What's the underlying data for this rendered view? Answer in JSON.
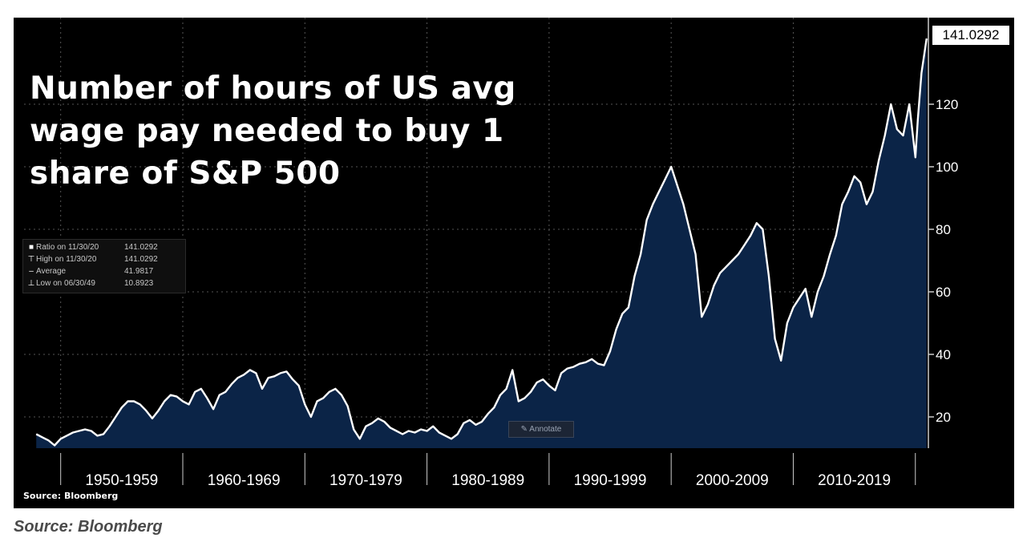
{
  "chart_data": {
    "type": "area",
    "title": "Number of hours of US avg wage pay needed to buy 1 share of S&P 500",
    "xlabel": "",
    "ylabel": "",
    "x_range": [
      1947.0,
      2021.0
    ],
    "ylim": [
      10,
      145
    ],
    "yticks": [
      20,
      40,
      60,
      80,
      100,
      120
    ],
    "decades": [
      {
        "label": "1950-1959",
        "start": 1950,
        "end": 1960
      },
      {
        "label": "1960-1969",
        "start": 1960,
        "end": 1970
      },
      {
        "label": "1970-1979",
        "start": 1970,
        "end": 1980
      },
      {
        "label": "1980-1989",
        "start": 1980,
        "end": 1990
      },
      {
        "label": "1990-1999",
        "start": 1990,
        "end": 2000
      },
      {
        "label": "2000-2009",
        "start": 2000,
        "end": 2010
      },
      {
        "label": "2010-2019",
        "start": 2010,
        "end": 2020
      }
    ],
    "grid": true,
    "legend_placement": "left-middle",
    "series": [
      {
        "name": "Ratio",
        "x": [
          1948.0,
          1948.5,
          1949.0,
          1949.5,
          1950.0,
          1950.5,
          1951.0,
          1951.5,
          1952.0,
          1952.5,
          1953.0,
          1953.5,
          1954.0,
          1954.5,
          1955.0,
          1955.5,
          1956.0,
          1956.5,
          1957.0,
          1957.5,
          1958.0,
          1958.5,
          1959.0,
          1959.5,
          1960.0,
          1960.5,
          1961.0,
          1961.5,
          1962.0,
          1962.5,
          1963.0,
          1963.5,
          1964.0,
          1964.5,
          1965.0,
          1965.5,
          1966.0,
          1966.5,
          1967.0,
          1967.5,
          1968.0,
          1968.5,
          1969.0,
          1969.5,
          1970.0,
          1970.5,
          1971.0,
          1971.5,
          1972.0,
          1972.5,
          1973.0,
          1973.5,
          1974.0,
          1974.5,
          1975.0,
          1975.5,
          1976.0,
          1976.5,
          1977.0,
          1977.5,
          1978.0,
          1978.5,
          1979.0,
          1979.5,
          1980.0,
          1980.5,
          1981.0,
          1981.5,
          1982.0,
          1982.5,
          1983.0,
          1983.5,
          1984.0,
          1984.5,
          1985.0,
          1985.5,
          1986.0,
          1986.5,
          1987.0,
          1987.5,
          1988.0,
          1988.5,
          1989.0,
          1989.5,
          1990.0,
          1990.5,
          1991.0,
          1991.5,
          1992.0,
          1992.5,
          1993.0,
          1993.5,
          1994.0,
          1994.5,
          1995.0,
          1995.5,
          1996.0,
          1996.5,
          1997.0,
          1997.5,
          1998.0,
          1998.5,
          1999.0,
          1999.5,
          2000.0,
          2000.5,
          2001.0,
          2001.5,
          2002.0,
          2002.5,
          2003.0,
          2003.5,
          2004.0,
          2004.5,
          2005.0,
          2005.5,
          2006.0,
          2006.5,
          2007.0,
          2007.5,
          2008.0,
          2008.5,
          2009.0,
          2009.5,
          2010.0,
          2010.5,
          2011.0,
          2011.5,
          2012.0,
          2012.5,
          2013.0,
          2013.5,
          2014.0,
          2014.5,
          2015.0,
          2015.5,
          2016.0,
          2016.5,
          2017.0,
          2017.5,
          2018.0,
          2018.5,
          2019.0,
          2019.5,
          2020.0,
          2020.2,
          2020.5,
          2020.92
        ],
        "y": [
          14.5,
          13.5,
          12.5,
          10.9,
          13.0,
          14.0,
          15.0,
          15.5,
          16.0,
          15.5,
          14.0,
          14.5,
          17.0,
          20.0,
          23.0,
          25.0,
          25.0,
          24.0,
          22.0,
          19.5,
          22.0,
          25.0,
          27.0,
          26.5,
          25.0,
          24.0,
          28.0,
          29.0,
          26.0,
          22.5,
          27.0,
          28.0,
          30.5,
          32.5,
          33.5,
          35.0,
          34.0,
          29.0,
          32.5,
          33.0,
          34.0,
          34.5,
          32.0,
          30.0,
          24.0,
          20.0,
          25.0,
          26.0,
          28.0,
          29.0,
          27.0,
          23.5,
          16.0,
          13.0,
          17.0,
          18.0,
          19.5,
          18.5,
          16.5,
          15.5,
          14.5,
          15.5,
          15.0,
          16.0,
          15.5,
          17.0,
          15.0,
          14.0,
          13.0,
          14.5,
          18.0,
          19.0,
          17.5,
          18.5,
          21.0,
          23.0,
          27.0,
          29.0,
          35.0,
          25.0,
          26.0,
          28.0,
          31.0,
          32.0,
          30.0,
          28.5,
          34.0,
          35.5,
          36.0,
          37.0,
          37.5,
          38.5,
          37.0,
          36.5,
          41.0,
          48.0,
          53.0,
          55.0,
          65.0,
          72.0,
          83.0,
          88.0,
          92.0,
          96.0,
          100.0,
          94.0,
          88.0,
          80.0,
          72.0,
          52.0,
          56.0,
          62.0,
          66.0,
          68.0,
          70.0,
          72.0,
          75.0,
          78.0,
          82.0,
          80.0,
          65.0,
          45.0,
          38.0,
          50.0,
          55.0,
          58.0,
          61.0,
          52.0,
          60.0,
          65.0,
          72.0,
          78.0,
          88.0,
          92.0,
          97.0,
          95.0,
          88.0,
          92.0,
          102.0,
          110.0,
          120.0,
          112.0,
          110.0,
          120.0,
          103.0,
          115.0,
          130.0,
          141.0292
        ]
      }
    ],
    "legend": [
      {
        "icon": "square-icon",
        "label": "Ratio on 11/30/20",
        "value": "141.0292"
      },
      {
        "icon": "high-marker-icon",
        "label": "High on 11/30/20",
        "value": "141.0292"
      },
      {
        "icon": "average-marker-icon",
        "label": "Average",
        "value": "41.9817"
      },
      {
        "icon": "low-marker-icon",
        "label": "Low on 06/30/49",
        "value": "10.8923"
      }
    ],
    "last_value": "141.0292",
    "source": "Source: Bloomberg",
    "annotate_label": "Annotate",
    "colors": {
      "background": "#000000",
      "area_fill": "#0b2447",
      "line": "#ffffff",
      "grid": "#555555",
      "average_line": "#aaaaaa"
    }
  },
  "page_caption": "Source: Bloomberg"
}
